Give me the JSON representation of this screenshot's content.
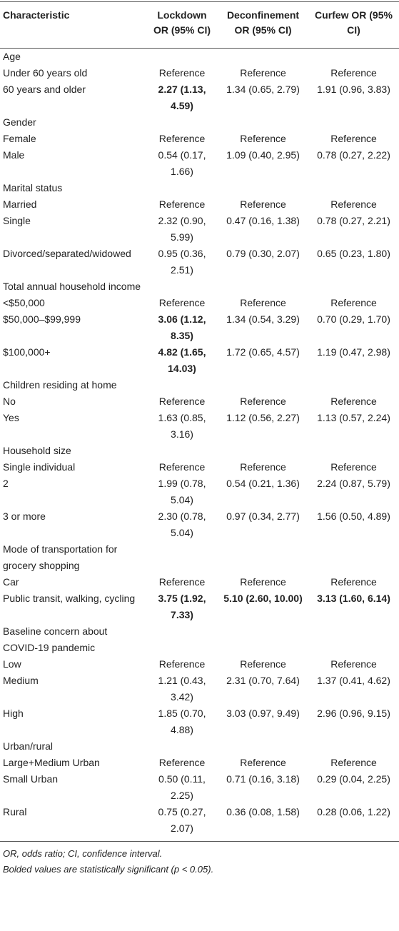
{
  "table": {
    "header": [
      "Characteristic",
      "Lockdown OR (95% CI)",
      "Deconfinement OR (95% CI)",
      "Curfew OR (95% CI)"
    ],
    "rows": [
      {
        "cells": [
          "Age"
        ]
      },
      {
        "cells": [
          "Under 60 years old",
          "Reference",
          "Reference",
          "Reference"
        ]
      },
      {
        "cells": [
          "60 years and older",
          "2.27 (1.13, 4.59)",
          "1.34 (0.65, 2.79)",
          "1.91 (0.96, 3.83)"
        ],
        "bold": [
          1
        ]
      },
      {
        "cells": [
          "Gender"
        ]
      },
      {
        "cells": [
          "Female",
          "Reference",
          "Reference",
          "Reference"
        ]
      },
      {
        "cells": [
          "Male",
          "0.54 (0.17, 1.66)",
          "1.09 (0.40, 2.95)",
          "0.78 (0.27, 2.22)"
        ]
      },
      {
        "cells": [
          "Marital status"
        ]
      },
      {
        "cells": [
          "Married",
          "Reference",
          "Reference",
          "Reference"
        ]
      },
      {
        "cells": [
          "Single",
          "2.32 (0.90, 5.99)",
          "0.47 (0.16, 1.38)",
          "0.78 (0.27, 2.21)"
        ]
      },
      {
        "cells": [
          "Divorced/separated/widowed",
          "0.95 (0.36, 2.51)",
          "0.79 (0.30, 2.07)",
          "0.65 (0.23, 1.80)"
        ]
      },
      {
        "cells": [
          "Total annual household income"
        ]
      },
      {
        "cells": [
          "<$50,000",
          "Reference",
          "Reference",
          "Reference"
        ]
      },
      {
        "cells": [
          "$50,000–$99,999",
          "3.06 (1.12, 8.35)",
          "1.34 (0.54, 3.29)",
          "0.70 (0.29, 1.70)"
        ],
        "bold": [
          1
        ]
      },
      {
        "cells": [
          "$100,000+",
          "4.82 (1.65, 14.03)",
          "1.72 (0.65, 4.57)",
          "1.19 (0.47, 2.98)"
        ],
        "bold": [
          1
        ]
      },
      {
        "cells": [
          "Children residing at home"
        ]
      },
      {
        "cells": [
          "No",
          "Reference",
          "Reference",
          "Reference"
        ]
      },
      {
        "cells": [
          "Yes",
          "1.63 (0.85, 3.16)",
          "1.12 (0.56, 2.27)",
          "1.13 (0.57, 2.24)"
        ]
      },
      {
        "cells": [
          "Household size"
        ]
      },
      {
        "cells": [
          "Single individual",
          "Reference",
          "Reference",
          "Reference"
        ]
      },
      {
        "cells": [
          "2",
          "1.99 (0.78, 5.04)",
          "0.54 (0.21, 1.36)",
          "2.24 (0.87, 5.79)"
        ]
      },
      {
        "cells": [
          "3 or more",
          "2.30 (0.78, 5.04)",
          "0.97 (0.34, 2.77)",
          "1.56 (0.50, 4.89)"
        ]
      },
      {
        "cells": [
          "Mode of transportation for grocery shopping"
        ]
      },
      {
        "cells": [
          "Car",
          "Reference",
          "Reference",
          "Reference"
        ]
      },
      {
        "cells": [
          "Public transit, walking, cycling",
          "3.75 (1.92, 7.33)",
          "5.10 (2.60, 10.00)",
          "3.13 (1.60, 6.14)"
        ],
        "bold": [
          1,
          2,
          3
        ]
      },
      {
        "cells": [
          "Baseline concern about COVID-19 pandemic"
        ]
      },
      {
        "cells": [
          "Low",
          "Reference",
          "Reference",
          "Reference"
        ]
      },
      {
        "cells": [
          "Medium",
          "1.21 (0.43, 3.42)",
          "2.31 (0.70, 7.64)",
          "1.37 (0.41, 4.62)"
        ]
      },
      {
        "cells": [
          "High",
          "1.85 (0.70, 4.88)",
          "3.03 (0.97, 9.49)",
          "2.96 (0.96, 9.15)"
        ]
      },
      {
        "cells": [
          "Urban/rural"
        ]
      },
      {
        "cells": [
          "Large+Medium Urban",
          "Reference",
          "Reference",
          "Reference"
        ]
      },
      {
        "cells": [
          "Small Urban",
          "0.50 (0.11, 2.25)",
          "0.71 (0.16, 3.18)",
          "0.29 (0.04, 2.25)"
        ]
      },
      {
        "cells": [
          "Rural",
          "0.75 (0.27, 2.07)",
          "0.36 (0.08, 1.58)",
          "0.28 (0.06, 1.22)"
        ]
      }
    ],
    "footnotes": [
      "OR, odds ratio; CI, confidence interval.",
      "Bolded values are statistically significant (p < 0.05)."
    ]
  }
}
